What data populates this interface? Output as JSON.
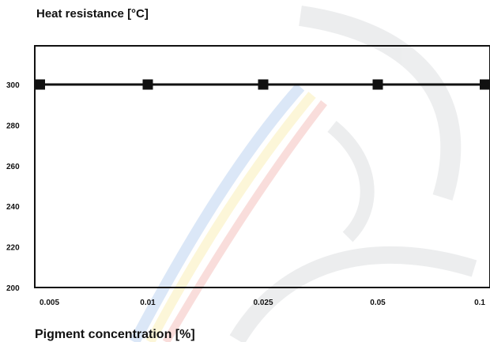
{
  "chart_data": {
    "type": "line",
    "title": "",
    "ylabel": "Heat resistance [°C]",
    "xlabel": "Pigment concentration [%]",
    "x_scale": "categorical",
    "categories": [
      "0.005",
      "0.01",
      "0.025",
      "0.05",
      "0.1"
    ],
    "ylim": [
      200,
      320
    ],
    "yticks": [
      200,
      220,
      240,
      260,
      280,
      300
    ],
    "grid": false,
    "legend": "none",
    "series": [
      {
        "values": [
          300,
          300,
          300,
          300,
          300
        ],
        "color": "#111111",
        "marker": "square"
      }
    ]
  }
}
